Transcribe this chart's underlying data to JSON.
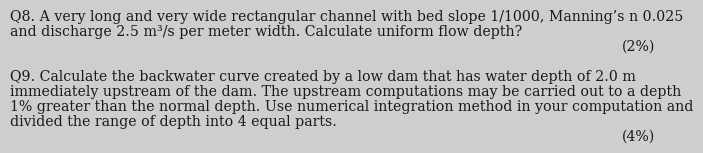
{
  "bg_color": "#cecece",
  "text_color": "#1a1a1a",
  "q8_line1": "Q8. A very long and very wide rectangular channel with bed slope 1/1000, Manning’s n 0.025",
  "q8_line2": "and discharge 2.5 m³/s per meter width. Calculate uniform flow depth?",
  "q8_mark": "(2%)",
  "q9_line1": "Q9. Calculate the backwater curve created by a low dam that has water depth of 2.0 m",
  "q9_line2": "immediately upstream of the dam. The upstream computations may be carried out to a depth",
  "q9_line3": "1% greater than the normal depth. Use numerical integration method in your computation and",
  "q9_line4": "divided the range of depth into 4 equal parts.",
  "q9_mark": "(4%)",
  "fontsize": 10.2,
  "font_family": "DejaVu Serif"
}
